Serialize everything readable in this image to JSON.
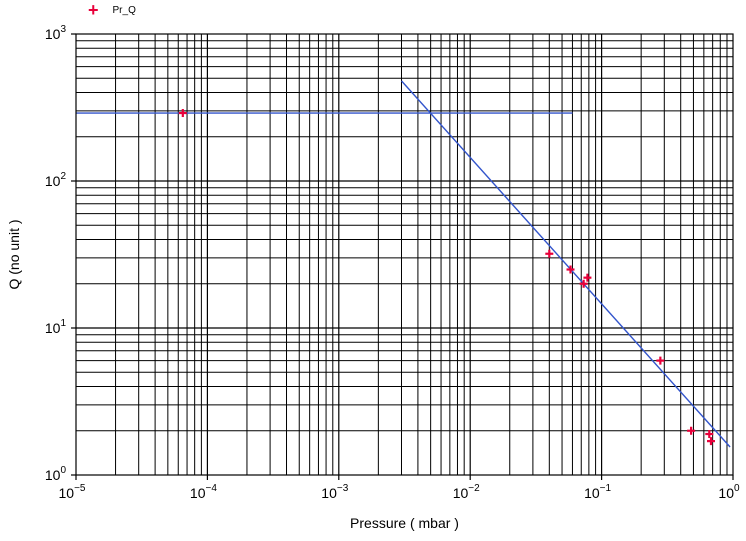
{
  "chart_data": {
    "type": "scatter",
    "xscale": "log",
    "yscale": "log",
    "xlim": [
      1e-05,
      1
    ],
    "ylim": [
      1,
      1000
    ],
    "xlabel": "Pressure ( mbar )",
    "ylabel": "Q (no unit )",
    "grid": true,
    "legend_position": "top-left",
    "x_ticks": [
      {
        "base": "10",
        "exp": "−5",
        "value": 1e-05
      },
      {
        "base": "10",
        "exp": "−4",
        "value": 0.0001
      },
      {
        "base": "10",
        "exp": "−3",
        "value": 0.001
      },
      {
        "base": "10",
        "exp": "−2",
        "value": 0.01
      },
      {
        "base": "10",
        "exp": "−1",
        "value": 0.1
      },
      {
        "base": "10",
        "exp": "0",
        "value": 1
      }
    ],
    "y_ticks": [
      {
        "base": "10",
        "exp": "0",
        "value": 1
      },
      {
        "base": "10",
        "exp": "1",
        "value": 10
      },
      {
        "base": "10",
        "exp": "2",
        "value": 100
      },
      {
        "base": "10",
        "exp": "3",
        "value": 1000
      }
    ],
    "series": [
      {
        "name": "Pr_Q",
        "marker": "plus",
        "color": "#e8003a",
        "points": [
          {
            "x": 6.5e-05,
            "y": 290
          },
          {
            "x": 0.04,
            "y": 32
          },
          {
            "x": 0.058,
            "y": 25
          },
          {
            "x": 0.073,
            "y": 20
          },
          {
            "x": 0.078,
            "y": 22
          },
          {
            "x": 0.28,
            "y": 6
          },
          {
            "x": 0.48,
            "y": 2
          },
          {
            "x": 0.66,
            "y": 1.9
          },
          {
            "x": 0.68,
            "y": 1.7
          }
        ]
      }
    ],
    "fit_lines": [
      {
        "color": "#3355cc",
        "points": [
          {
            "x": 1e-05,
            "y": 290
          },
          {
            "x": 0.06,
            "y": 290
          }
        ]
      },
      {
        "color": "#3355cc",
        "points": [
          {
            "x": 0.003,
            "y": 480
          },
          {
            "x": 0.95,
            "y": 1.55
          }
        ]
      }
    ]
  }
}
